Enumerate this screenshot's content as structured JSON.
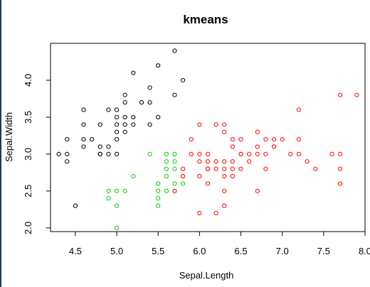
{
  "chart_data": {
    "type": "scatter",
    "title": "kmeans",
    "xlabel": "Sepal.Length",
    "ylabel": "Sepal.Width",
    "xlim": [
      4.2,
      8.0
    ],
    "ylim": [
      1.95,
      4.5
    ],
    "x_ticks": [
      4.5,
      5.0,
      5.5,
      6.0,
      6.5,
      7.0,
      7.5,
      8.0
    ],
    "x_tick_labels": [
      "4.5",
      "5.0",
      "5.5",
      "6.0",
      "6.5",
      "7.0",
      "7.5",
      "8.0"
    ],
    "y_ticks": [
      2.0,
      2.5,
      3.0,
      3.5,
      4.0
    ],
    "y_tick_labels": [
      "2.0",
      "2.5",
      "3.0",
      "3.5",
      "4.0"
    ],
    "grid": false,
    "series": [
      {
        "color": "#000000",
        "points": [
          [
            4.3,
            3.0
          ],
          [
            4.4,
            3.0
          ],
          [
            4.4,
            2.9
          ],
          [
            4.4,
            3.2
          ],
          [
            4.5,
            2.3
          ],
          [
            4.6,
            3.1
          ],
          [
            4.6,
            3.2
          ],
          [
            4.6,
            3.4
          ],
          [
            4.6,
            3.6
          ],
          [
            4.7,
            3.2
          ],
          [
            4.8,
            3.0
          ],
          [
            4.8,
            3.1
          ],
          [
            4.8,
            3.4
          ],
          [
            4.9,
            3.0
          ],
          [
            4.9,
            3.1
          ],
          [
            4.9,
            3.6
          ],
          [
            5.0,
            3.0
          ],
          [
            5.0,
            3.2
          ],
          [
            5.0,
            3.3
          ],
          [
            5.0,
            3.4
          ],
          [
            5.0,
            3.5
          ],
          [
            5.0,
            3.6
          ],
          [
            5.1,
            3.3
          ],
          [
            5.1,
            3.4
          ],
          [
            5.1,
            3.5
          ],
          [
            5.1,
            3.7
          ],
          [
            5.1,
            3.8
          ],
          [
            5.2,
            3.4
          ],
          [
            5.2,
            3.5
          ],
          [
            5.2,
            4.1
          ],
          [
            5.3,
            3.7
          ],
          [
            5.4,
            3.4
          ],
          [
            5.4,
            3.7
          ],
          [
            5.4,
            3.9
          ],
          [
            5.5,
            3.5
          ],
          [
            5.5,
            4.2
          ],
          [
            5.7,
            3.8
          ],
          [
            5.7,
            4.4
          ],
          [
            5.8,
            4.0
          ],
          [
            4.8,
            3.0
          ]
        ]
      },
      {
        "color": "#00cc00",
        "points": [
          [
            4.9,
            2.4
          ],
          [
            4.9,
            2.5
          ],
          [
            5.0,
            2.0
          ],
          [
            5.0,
            2.3
          ],
          [
            5.1,
            2.5
          ],
          [
            5.2,
            2.7
          ],
          [
            5.4,
            3.0
          ],
          [
            5.5,
            2.3
          ],
          [
            5.5,
            2.4
          ],
          [
            5.5,
            2.5
          ],
          [
            5.5,
            2.6
          ],
          [
            5.6,
            2.5
          ],
          [
            5.6,
            2.7
          ],
          [
            5.6,
            2.8
          ],
          [
            5.6,
            2.9
          ],
          [
            5.6,
            3.0
          ],
          [
            5.7,
            2.5
          ],
          [
            5.7,
            2.6
          ],
          [
            5.7,
            2.8
          ],
          [
            5.7,
            2.9
          ],
          [
            5.7,
            3.0
          ],
          [
            5.8,
            2.6
          ],
          [
            5.8,
            2.7
          ],
          [
            5.0,
            2.5
          ]
        ]
      },
      {
        "color": "#ff0000",
        "points": [
          [
            5.7,
            2.5
          ],
          [
            5.8,
            2.7
          ],
          [
            5.8,
            2.8
          ],
          [
            5.9,
            3.0
          ],
          [
            5.9,
            3.2
          ],
          [
            6.0,
            2.2
          ],
          [
            6.0,
            2.7
          ],
          [
            6.0,
            2.9
          ],
          [
            6.0,
            3.0
          ],
          [
            6.0,
            3.4
          ],
          [
            6.1,
            2.6
          ],
          [
            6.1,
            2.8
          ],
          [
            6.1,
            2.9
          ],
          [
            6.1,
            3.0
          ],
          [
            6.2,
            2.2
          ],
          [
            6.2,
            2.8
          ],
          [
            6.2,
            2.9
          ],
          [
            6.2,
            3.4
          ],
          [
            6.3,
            2.3
          ],
          [
            6.3,
            2.5
          ],
          [
            6.3,
            2.7
          ],
          [
            6.3,
            2.8
          ],
          [
            6.3,
            2.9
          ],
          [
            6.3,
            3.3
          ],
          [
            6.3,
            3.4
          ],
          [
            6.4,
            2.7
          ],
          [
            6.4,
            2.8
          ],
          [
            6.4,
            2.9
          ],
          [
            6.4,
            3.1
          ],
          [
            6.4,
            3.2
          ],
          [
            6.5,
            2.8
          ],
          [
            6.5,
            3.0
          ],
          [
            6.5,
            3.2
          ],
          [
            6.6,
            2.9
          ],
          [
            6.6,
            3.0
          ],
          [
            6.7,
            2.5
          ],
          [
            6.7,
            3.0
          ],
          [
            6.7,
            3.1
          ],
          [
            6.7,
            3.3
          ],
          [
            6.8,
            2.8
          ],
          [
            6.8,
            3.0
          ],
          [
            6.8,
            3.2
          ],
          [
            6.9,
            3.1
          ],
          [
            6.9,
            3.2
          ],
          [
            7.0,
            3.2
          ],
          [
            7.1,
            3.0
          ],
          [
            7.2,
            3.0
          ],
          [
            7.2,
            3.2
          ],
          [
            7.2,
            3.6
          ],
          [
            7.3,
            2.9
          ],
          [
            7.4,
            2.8
          ],
          [
            7.6,
            3.0
          ],
          [
            7.7,
            2.6
          ],
          [
            7.7,
            2.8
          ],
          [
            7.7,
            3.0
          ],
          [
            7.7,
            3.8
          ],
          [
            7.9,
            3.8
          ],
          [
            6.1,
            2.8
          ],
          [
            6.9,
            3.1
          ],
          [
            6.5,
            3.0
          ]
        ]
      }
    ]
  }
}
